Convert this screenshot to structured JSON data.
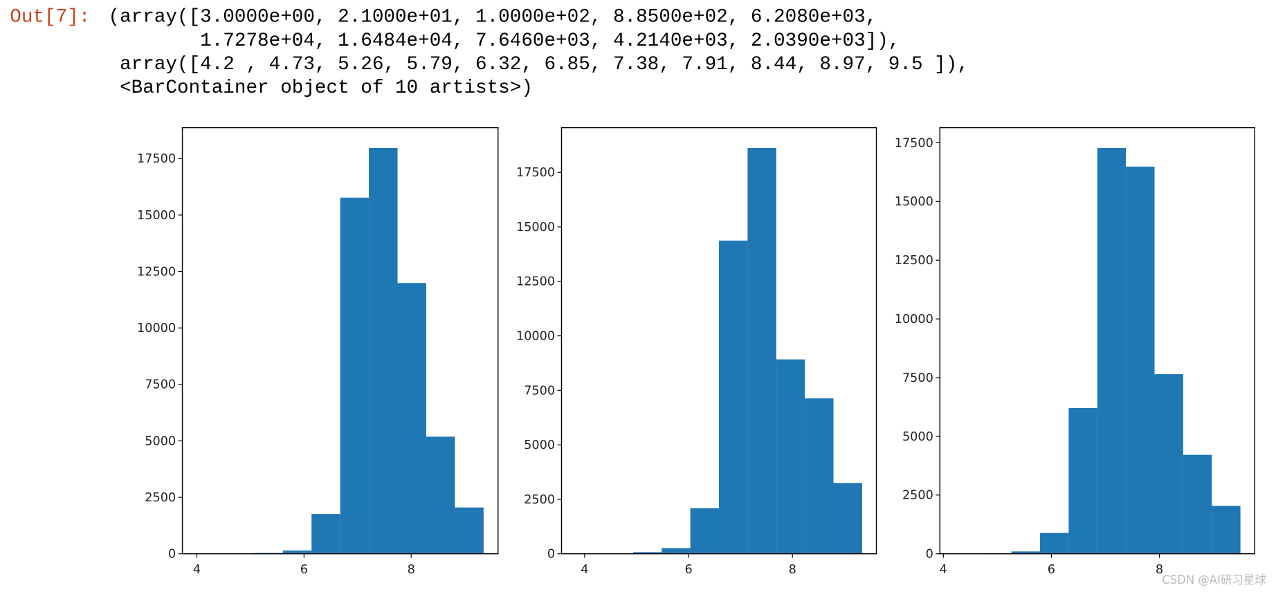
{
  "output": {
    "prompt": "Out[7]:",
    "lines": [
      "(array([3.0000e+00, 2.1000e+01, 1.0000e+02, 8.8500e+02, 6.2080e+03,",
      "        1.7278e+04, 1.6484e+04, 7.6460e+03, 4.2140e+03, 2.0390e+03]),",
      " array([4.2 , 4.73, 5.26, 5.79, 6.32, 6.85, 7.38, 7.91, 8.44, 8.97, 9.5 ]),",
      " <BarContainer object of 10 artists>)"
    ]
  },
  "watermark": "CSDN @AI研习星球",
  "chart_data": [
    {
      "type": "histogram",
      "color": "#1f77b4",
      "bins": [
        4.0,
        4.535,
        5.07,
        5.605,
        6.14,
        6.675,
        7.21,
        7.745,
        8.28,
        8.815,
        9.35
      ],
      "values": [
        3,
        12,
        35,
        145,
        1765,
        15770,
        17970,
        11990,
        5185,
        2050
      ],
      "xlim": [
        3.73,
        9.62
      ],
      "ylim": [
        0,
        18868
      ],
      "xticks": [
        4,
        6,
        8
      ],
      "yticks": [
        0,
        2500,
        5000,
        7500,
        10000,
        12500,
        15000,
        17500
      ]
    },
    {
      "type": "histogram",
      "color": "#1f77b4",
      "bins": [
        3.83,
        4.381,
        4.932,
        5.483,
        6.034,
        6.585,
        7.136,
        7.687,
        8.238,
        8.789,
        9.34
      ],
      "values": [
        2,
        10,
        75,
        260,
        2090,
        14370,
        18620,
        8920,
        7130,
        3250
      ],
      "xlim": [
        3.555,
        9.615
      ],
      "ylim": [
        0,
        19551
      ],
      "xticks": [
        4,
        6,
        8
      ],
      "yticks": [
        0,
        2500,
        5000,
        7500,
        10000,
        12500,
        15000,
        17500
      ]
    },
    {
      "type": "histogram",
      "color": "#1f77b4",
      "bins": [
        4.2,
        4.73,
        5.26,
        5.79,
        6.32,
        6.85,
        7.38,
        7.91,
        8.44,
        8.97,
        9.5
      ],
      "values": [
        3,
        21,
        100,
        885,
        6208,
        17278,
        16484,
        7646,
        4214,
        2039
      ],
      "xlim": [
        3.935,
        9.765
      ],
      "ylim": [
        0,
        18142
      ],
      "xticks": [
        4,
        6,
        8
      ],
      "yticks": [
        0,
        2500,
        5000,
        7500,
        10000,
        12500,
        15000,
        17500
      ]
    }
  ]
}
